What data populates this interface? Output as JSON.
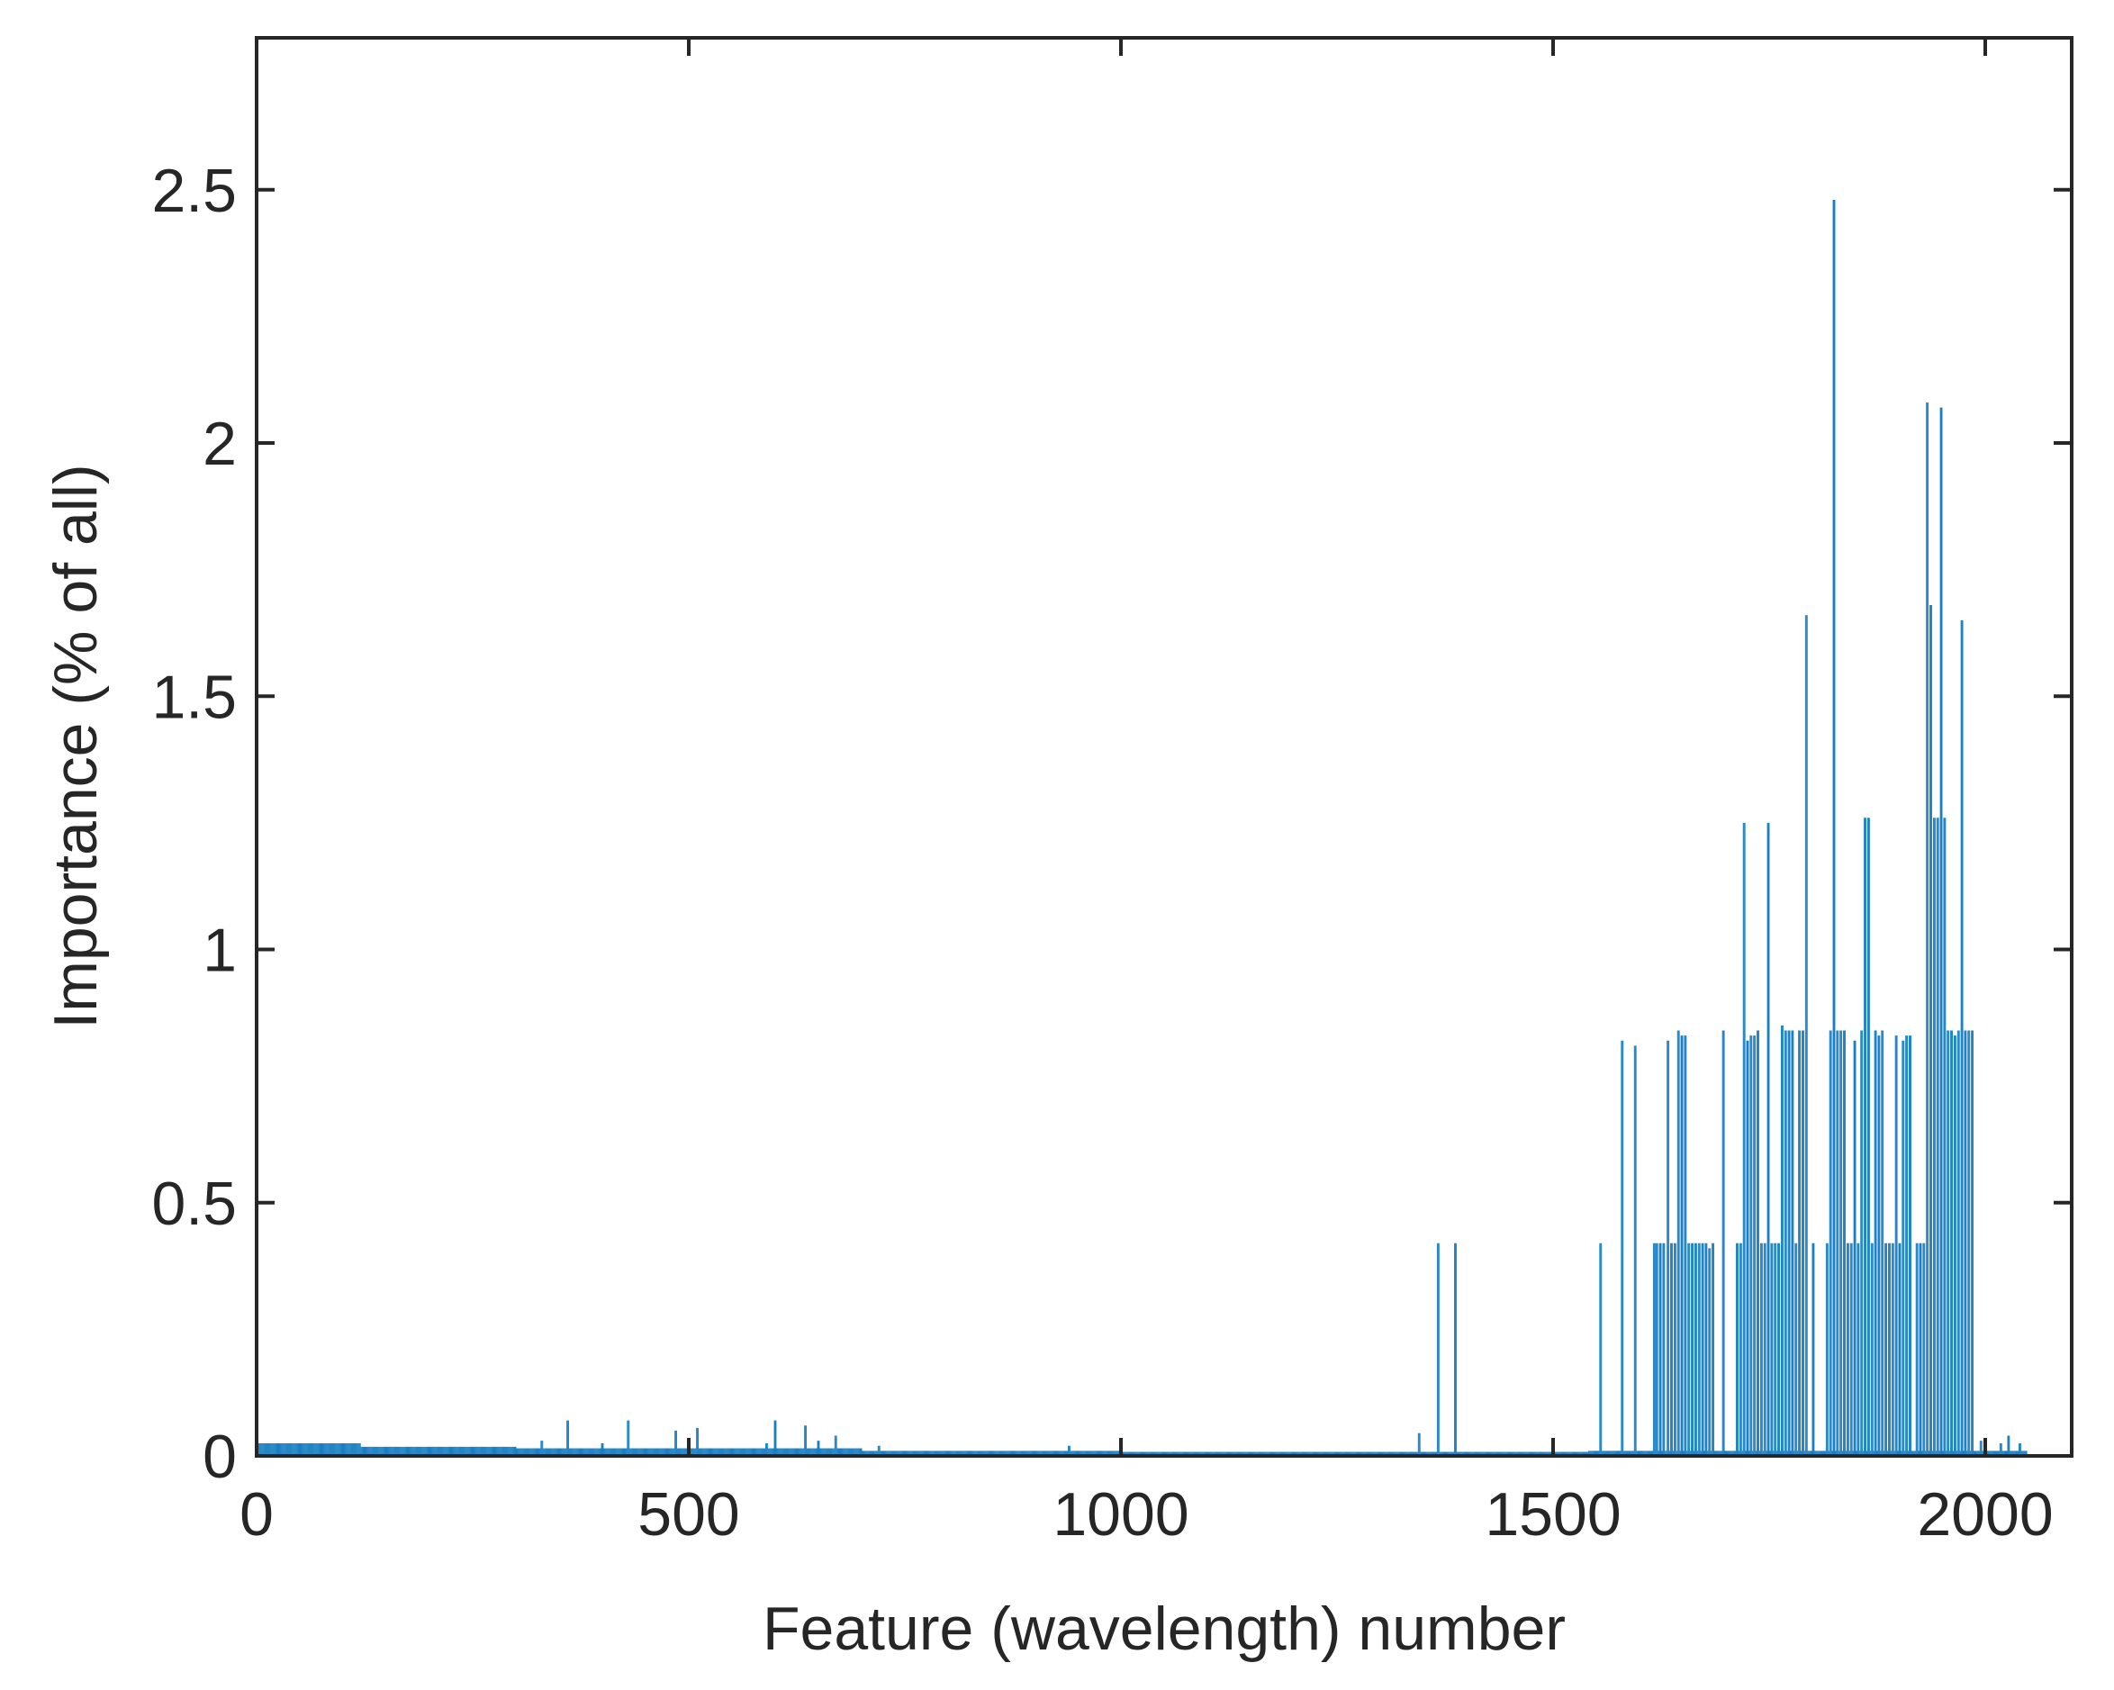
{
  "chart_data": {
    "type": "bar",
    "title": "",
    "xlabel": "Feature (wavelength) number",
    "ylabel": "Importance (% of all)",
    "xlim": [
      0,
      2100
    ],
    "ylim": [
      0,
      2.8
    ],
    "xticks": [
      0,
      500,
      1000,
      1500,
      2000
    ],
    "xtick_labels": [
      "0",
      "500",
      "1000",
      "1500",
      "2000"
    ],
    "yticks": [
      0,
      0.5,
      1,
      1.5,
      2,
      2.5
    ],
    "ytick_labels": [
      "0",
      "0.5",
      "1",
      "1.5",
      "2",
      "2.5"
    ],
    "grid": false,
    "bar_color": "#0072BD",
    "axis_color": "#262626",
    "feature_count": 2048,
    "baseline_segments": [
      {
        "from": 1,
        "to": 120,
        "value": 0.025
      },
      {
        "from": 121,
        "to": 300,
        "value": 0.018
      },
      {
        "from": 301,
        "to": 700,
        "value": 0.015
      },
      {
        "from": 701,
        "to": 1000,
        "value": 0.01
      },
      {
        "from": 1001,
        "to": 1540,
        "value": 0.008
      },
      {
        "from": 1541,
        "to": 2048,
        "value": 0.01
      }
    ],
    "peaks": [
      {
        "x": 330,
        "value": 0.03
      },
      {
        "x": 360,
        "value": 0.07
      },
      {
        "x": 400,
        "value": 0.025
      },
      {
        "x": 430,
        "value": 0.07
      },
      {
        "x": 485,
        "value": 0.05
      },
      {
        "x": 510,
        "value": 0.055
      },
      {
        "x": 590,
        "value": 0.025
      },
      {
        "x": 600,
        "value": 0.07
      },
      {
        "x": 635,
        "value": 0.06
      },
      {
        "x": 650,
        "value": 0.03
      },
      {
        "x": 670,
        "value": 0.04
      },
      {
        "x": 720,
        "value": 0.02
      },
      {
        "x": 940,
        "value": 0.02
      },
      {
        "x": 1345,
        "value": 0.045
      },
      {
        "x": 1367,
        "value": 0.42
      },
      {
        "x": 1387,
        "value": 0.42
      },
      {
        "x": 1555,
        "value": 0.42
      },
      {
        "x": 1580,
        "value": 0.82
      },
      {
        "x": 1595,
        "value": 0.81
      },
      {
        "x": 1617,
        "value": 0.42
      },
      {
        "x": 1620,
        "value": 0.42
      },
      {
        "x": 1624,
        "value": 0.42
      },
      {
        "x": 1628,
        "value": 0.42
      },
      {
        "x": 1633,
        "value": 0.82
      },
      {
        "x": 1637,
        "value": 0.42
      },
      {
        "x": 1641,
        "value": 0.42
      },
      {
        "x": 1645,
        "value": 0.84
      },
      {
        "x": 1649,
        "value": 0.83
      },
      {
        "x": 1653,
        "value": 0.83
      },
      {
        "x": 1657,
        "value": 0.42
      },
      {
        "x": 1661,
        "value": 0.42
      },
      {
        "x": 1665,
        "value": 0.42
      },
      {
        "x": 1669,
        "value": 0.42
      },
      {
        "x": 1673,
        "value": 0.42
      },
      {
        "x": 1677,
        "value": 0.42
      },
      {
        "x": 1681,
        "value": 0.41
      },
      {
        "x": 1685,
        "value": 0.42
      },
      {
        "x": 1697,
        "value": 0.84
      },
      {
        "x": 1713,
        "value": 0.42
      },
      {
        "x": 1717,
        "value": 0.42
      },
      {
        "x": 1721,
        "value": 1.25
      },
      {
        "x": 1725,
        "value": 0.82
      },
      {
        "x": 1729,
        "value": 0.83
      },
      {
        "x": 1733,
        "value": 0.83
      },
      {
        "x": 1737,
        "value": 0.84
      },
      {
        "x": 1741,
        "value": 0.42
      },
      {
        "x": 1745,
        "value": 0.42
      },
      {
        "x": 1749,
        "value": 1.25
      },
      {
        "x": 1753,
        "value": 0.42
      },
      {
        "x": 1757,
        "value": 0.42
      },
      {
        "x": 1761,
        "value": 0.42
      },
      {
        "x": 1765,
        "value": 0.85
      },
      {
        "x": 1769,
        "value": 0.84
      },
      {
        "x": 1773,
        "value": 0.84
      },
      {
        "x": 1777,
        "value": 0.84
      },
      {
        "x": 1781,
        "value": 0.42
      },
      {
        "x": 1785,
        "value": 0.84
      },
      {
        "x": 1789,
        "value": 0.84
      },
      {
        "x": 1793,
        "value": 1.66
      },
      {
        "x": 1801,
        "value": 0.42
      },
      {
        "x": 1817,
        "value": 0.42
      },
      {
        "x": 1821,
        "value": 0.84
      },
      {
        "x": 1825,
        "value": 2.48
      },
      {
        "x": 1829,
        "value": 0.84
      },
      {
        "x": 1833,
        "value": 0.84
      },
      {
        "x": 1837,
        "value": 0.84
      },
      {
        "x": 1841,
        "value": 0.42
      },
      {
        "x": 1845,
        "value": 0.42
      },
      {
        "x": 1849,
        "value": 0.82
      },
      {
        "x": 1853,
        "value": 0.42
      },
      {
        "x": 1857,
        "value": 0.84
      },
      {
        "x": 1861,
        "value": 1.26
      },
      {
        "x": 1865,
        "value": 1.26
      },
      {
        "x": 1869,
        "value": 0.42
      },
      {
        "x": 1873,
        "value": 0.84
      },
      {
        "x": 1877,
        "value": 0.83
      },
      {
        "x": 1881,
        "value": 0.84
      },
      {
        "x": 1885,
        "value": 0.42
      },
      {
        "x": 1889,
        "value": 0.42
      },
      {
        "x": 1893,
        "value": 0.42
      },
      {
        "x": 1897,
        "value": 0.83
      },
      {
        "x": 1901,
        "value": 0.42
      },
      {
        "x": 1905,
        "value": 0.82
      },
      {
        "x": 1909,
        "value": 0.83
      },
      {
        "x": 1913,
        "value": 0.83
      },
      {
        "x": 1921,
        "value": 0.42
      },
      {
        "x": 1925,
        "value": 0.42
      },
      {
        "x": 1929,
        "value": 0.42
      },
      {
        "x": 1933,
        "value": 2.08
      },
      {
        "x": 1937,
        "value": 1.68
      },
      {
        "x": 1941,
        "value": 1.26
      },
      {
        "x": 1945,
        "value": 1.26
      },
      {
        "x": 1949,
        "value": 2.07
      },
      {
        "x": 1953,
        "value": 1.26
      },
      {
        "x": 1957,
        "value": 0.84
      },
      {
        "x": 1961,
        "value": 0.84
      },
      {
        "x": 1965,
        "value": 0.83
      },
      {
        "x": 1969,
        "value": 0.84
      },
      {
        "x": 1973,
        "value": 1.65
      },
      {
        "x": 1977,
        "value": 0.84
      },
      {
        "x": 1981,
        "value": 0.84
      },
      {
        "x": 1985,
        "value": 0.84
      },
      {
        "x": 1995,
        "value": 0.03
      },
      {
        "x": 2000,
        "value": 0.03
      },
      {
        "x": 2018,
        "value": 0.025
      },
      {
        "x": 2027,
        "value": 0.04
      },
      {
        "x": 2040,
        "value": 0.025
      }
    ]
  }
}
